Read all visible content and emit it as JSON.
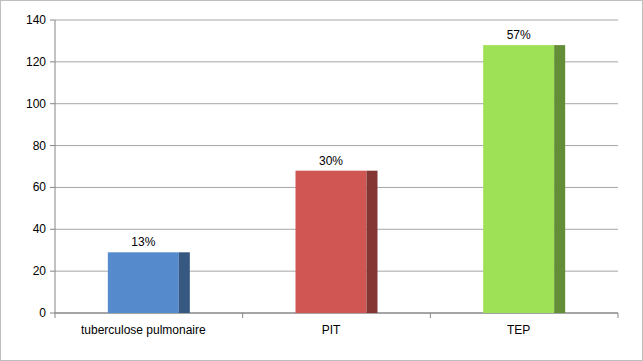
{
  "chart_data": {
    "type": "bar",
    "categories": [
      "tuberculose pulmonaire",
      "PIT",
      "TEP"
    ],
    "values": [
      29,
      68,
      128
    ],
    "value_labels": [
      "13%",
      "30%",
      "57%"
    ],
    "colors": [
      "#4f81bd",
      "#c0504d",
      "#92d050"
    ],
    "ylim": [
      0,
      140
    ],
    "yticks": [
      0,
      20,
      40,
      60,
      80,
      100,
      120,
      140
    ],
    "grid": true,
    "data_labels": true
  }
}
